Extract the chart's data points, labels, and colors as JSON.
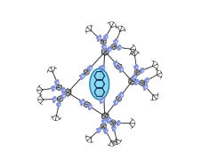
{
  "bg_color": "#ffffff",
  "anthracene_fill": "#7dd8f0",
  "anthracene_edge": "#1a7aaa",
  "ring_color": "#3a3a3a",
  "triazole_color": "#8090dd",
  "triazole_fill": "#c8d0f8",
  "linker_color": "#3a3a3a",
  "sugar_color": "#2a2a2a",
  "fig_width": 2.28,
  "fig_height": 1.89,
  "dpi": 100
}
